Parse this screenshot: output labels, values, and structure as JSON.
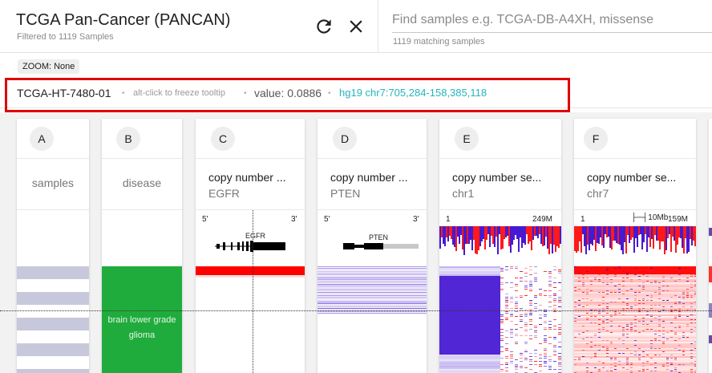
{
  "cohort": {
    "title": "TCGA Pan-Cancer (PANCAN)",
    "subtitle": "Filtered to 1119 Samples",
    "refresh_icon": "refresh-icon",
    "close_icon": "close-icon"
  },
  "search": {
    "placeholder": "Find samples e.g. TCGA-DB-A4XH, missense",
    "value": "",
    "count": "1119 matching samples"
  },
  "zoom": {
    "label": "ZOOM: None"
  },
  "tooltip": {
    "sample": "TCGA-HT-7480-01",
    "separator": "•",
    "hint": "alt-click to freeze tooltip",
    "value": "value: 0.0886",
    "position": "hg19 chr7:705,284-158,385,118"
  },
  "columns": [
    {
      "id": "A",
      "title": "",
      "subtitle": "",
      "label": "samples"
    },
    {
      "id": "B",
      "title": "",
      "subtitle": "",
      "label": "disease",
      "category_text": "brain lower grade glioma"
    },
    {
      "id": "C",
      "title": "copy number ...",
      "subtitle": "EGFR",
      "gene": "EGFR",
      "five_prime": "5'",
      "three_prime": "3'"
    },
    {
      "id": "D",
      "title": "copy number ...",
      "subtitle": "PTEN",
      "gene": "PTEN",
      "five_prime": "5'",
      "three_prime": "3'"
    },
    {
      "id": "E",
      "title": "copy number se...",
      "subtitle": "chr1",
      "start": "1",
      "end": "249M"
    },
    {
      "id": "F",
      "title": "copy number se...",
      "subtitle": "chr7",
      "start": "1",
      "end": "159M",
      "scale": "10Mb"
    }
  ],
  "colors": {
    "amplification": "#ff0000",
    "deletion": "#3300cc",
    "disease_glioma": "#1fac3c",
    "samples_stripe": "#c8c8dc",
    "highlight": "#e00000",
    "position_text": "#26b5bd"
  }
}
